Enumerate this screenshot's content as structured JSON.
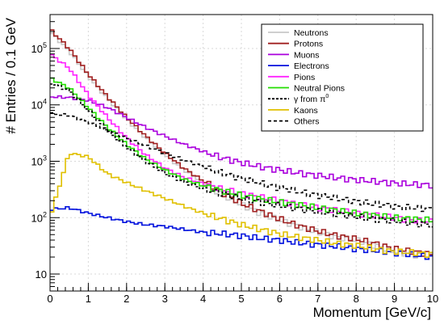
{
  "chart_data": {
    "type": "line",
    "title": "",
    "xlabel": "Momentum [GeV/c]",
    "ylabel": "# Entries / 0.1 GeV",
    "xlim": [
      0,
      10
    ],
    "ylim": [
      5,
      400000
    ],
    "yscale": "log",
    "x_ticks": [
      "0",
      "1",
      "2",
      "3",
      "4",
      "5",
      "6",
      "7",
      "8",
      "9",
      "10"
    ],
    "y_ticks": [
      {
        "value": 10,
        "base": "10",
        "exp": ""
      },
      {
        "value": 100,
        "base": "10",
        "exp": "2"
      },
      {
        "value": 1000,
        "base": "10",
        "exp": "3"
      },
      {
        "value": 10000,
        "base": "10",
        "exp": "4"
      },
      {
        "value": 100000,
        "base": "10",
        "exp": "5"
      }
    ],
    "grid": true,
    "legend_position": "top-right",
    "x": [
      0.0,
      0.5,
      1.0,
      1.5,
      2.0,
      2.5,
      3.0,
      3.5,
      4.0,
      4.5,
      5.0,
      5.5,
      6.0,
      6.5,
      7.0,
      7.5,
      8.0,
      8.5,
      9.0,
      9.5,
      10.0
    ],
    "series": [
      {
        "name": "Neutrons",
        "color": "#c8c8c8",
        "dash": "",
        "values": [
          200000,
          90000,
          32000,
          13000,
          5500,
          2600,
          1300,
          700,
          420,
          260,
          170,
          120,
          90,
          70,
          55,
          45,
          40,
          32,
          25,
          22,
          20
        ]
      },
      {
        "name": "Protons",
        "color": "#a02020",
        "dash": "",
        "values": [
          220000,
          100000,
          35000,
          14000,
          6000,
          2800,
          1400,
          750,
          450,
          280,
          180,
          130,
          95,
          72,
          58,
          48,
          42,
          35,
          28,
          25,
          22
        ]
      },
      {
        "name": "Muons",
        "color": "#aa00dd",
        "dash": "",
        "values": [
          14000,
          13500,
          12000,
          9000,
          6000,
          4000,
          2800,
          2000,
          1500,
          1150,
          950,
          800,
          700,
          620,
          560,
          510,
          470,
          440,
          410,
          390,
          380
        ]
      },
      {
        "name": "Electrons",
        "color": "#0010dd",
        "dash": "",
        "values": [
          140,
          150,
          120,
          100,
          85,
          75,
          70,
          62,
          55,
          52,
          48,
          43,
          40,
          36,
          33,
          31,
          28,
          26,
          24,
          22,
          20
        ]
      },
      {
        "name": "Pions",
        "color": "#ff22ff",
        "dash": "",
        "values": [
          80000,
          45000,
          15000,
          6000,
          2600,
          1300,
          760,
          520,
          400,
          320,
          270,
          230,
          200,
          170,
          150,
          135,
          120,
          110,
          100,
          90,
          85
        ]
      },
      {
        "name": "Neutral Pions",
        "color": "#22dd00",
        "dash": "",
        "values": [
          30000,
          20000,
          9000,
          4000,
          2000,
          1100,
          700,
          480,
          370,
          300,
          250,
          215,
          190,
          170,
          150,
          135,
          120,
          110,
          100,
          95,
          90
        ]
      },
      {
        "name": "γ from π⁰",
        "color": "#000000",
        "dash": "3,2",
        "values": [
          25000,
          18000,
          8000,
          3500,
          1800,
          1000,
          620,
          430,
          330,
          270,
          220,
          190,
          165,
          145,
          130,
          118,
          105,
          95,
          88,
          80,
          75
        ]
      },
      {
        "name": "Kaons",
        "color": "#e0c000",
        "dash": "",
        "values": [
          100,
          1400,
          1200,
          600,
          420,
          300,
          220,
          160,
          120,
          95,
          75,
          62,
          52,
          45,
          40,
          35,
          32,
          28,
          25,
          24,
          22
        ]
      },
      {
        "name": "Others",
        "color": "#000000",
        "dash": "4,3",
        "values": [
          7000,
          6500,
          5000,
          3600,
          2600,
          1900,
          1400,
          1050,
          800,
          620,
          500,
          410,
          340,
          290,
          250,
          220,
          195,
          175,
          160,
          150,
          140
        ]
      }
    ],
    "legend": [
      {
        "label": "Neutrons",
        "color": "#c8c8c8",
        "dash": ""
      },
      {
        "label": "Protons",
        "color": "#a02020",
        "dash": ""
      },
      {
        "label": "Muons",
        "color": "#aa00dd",
        "dash": ""
      },
      {
        "label": "Electrons",
        "color": "#0010dd",
        "dash": ""
      },
      {
        "label": "Pions",
        "color": "#ff22ff",
        "dash": ""
      },
      {
        "label": "Neutral Pions",
        "color": "#22dd00",
        "dash": ""
      },
      {
        "label": "γ from π",
        "sup": "0",
        "color": "#000000",
        "dash": "3,2"
      },
      {
        "label": "Kaons",
        "color": "#e0c000",
        "dash": ""
      },
      {
        "label": "Others",
        "color": "#000000",
        "dash": "4,3"
      }
    ]
  }
}
